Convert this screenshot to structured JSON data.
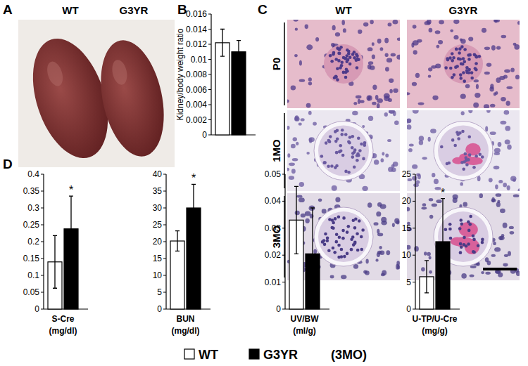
{
  "panel_letters": [
    "A",
    "B",
    "C",
    "D"
  ],
  "panel_a": {
    "columns": [
      "WT",
      "G3YR"
    ]
  },
  "panel_c": {
    "columns": [
      "WT",
      "G3YR"
    ],
    "rows": [
      "P0",
      "1MO",
      "3MO"
    ]
  },
  "legend_note": "(3MO)",
  "chart_data": [
    {
      "type": "bar",
      "ylabel": "Kidney/body weight ratio",
      "categories": [
        null
      ],
      "series": [
        {
          "color": "#ffffff",
          "values": [
            0.0122
          ],
          "error": [
            0.0018
          ]
        },
        {
          "color": "#000000",
          "values": [
            0.011
          ],
          "error": [
            0.0015
          ]
        }
      ],
      "ylim": [
        0,
        0.016
      ],
      "yticks": [
        0,
        0.002,
        0.004,
        0.006,
        0.008,
        0.01,
        0.012,
        0.014,
        0.016
      ],
      "grid": false
    },
    {
      "type": "bar",
      "categories": [
        "S-Cre"
      ],
      "xlabel": "(mg/dl)",
      "series": [
        {
          "name": "WT",
          "color": "#ffffff",
          "values": [
            0.14
          ],
          "error": [
            0.078
          ]
        },
        {
          "name": "G3YR",
          "color": "#000000",
          "values": [
            0.238
          ],
          "error": [
            0.097
          ],
          "annotations": [
            "*"
          ]
        }
      ],
      "ylim": [
        0,
        0.4
      ],
      "yticks": [
        0,
        0.05,
        0.1,
        0.15,
        0.2,
        0.25,
        0.3,
        0.35,
        0.4
      ],
      "grid": false
    },
    {
      "type": "bar",
      "categories": [
        "BUN"
      ],
      "xlabel": "(mg/dl)",
      "series": [
        {
          "color": "#ffffff",
          "values": [
            20.2
          ],
          "error": [
            3
          ]
        },
        {
          "color": "#000000",
          "values": [
            30
          ],
          "error": [
            7
          ],
          "annotations": [
            "*"
          ]
        }
      ],
      "ylim": [
        0,
        40
      ],
      "yticks": [
        0,
        5,
        10,
        15,
        20,
        25,
        30,
        35,
        40
      ],
      "grid": false
    },
    {
      "type": "bar",
      "categories": [
        "UV/BW"
      ],
      "xlabel": "(ml/g)",
      "series": [
        {
          "color": "#ffffff",
          "values": [
            0.033
          ],
          "error": [
            0.0125
          ]
        },
        {
          "color": "#000000",
          "values": [
            0.0205
          ],
          "error": [
            0.017
          ]
        }
      ],
      "ylim": [
        0,
        0.05
      ],
      "yticks": [
        0,
        0.01,
        0.02,
        0.03,
        0.04,
        0.05
      ],
      "grid": false
    },
    {
      "type": "bar",
      "categories": [
        "U-TP/U-Cre"
      ],
      "xlabel": "(mg/g)",
      "series": [
        {
          "color": "#ffffff",
          "values": [
            6
          ],
          "error": [
            3
          ]
        },
        {
          "color": "#000000",
          "values": [
            12.5
          ],
          "error": [
            8
          ],
          "annotations": [
            "*"
          ]
        }
      ],
      "ylim": [
        0,
        25
      ],
      "yticks": [
        0,
        5,
        10,
        15,
        20,
        25
      ],
      "grid": false
    }
  ]
}
